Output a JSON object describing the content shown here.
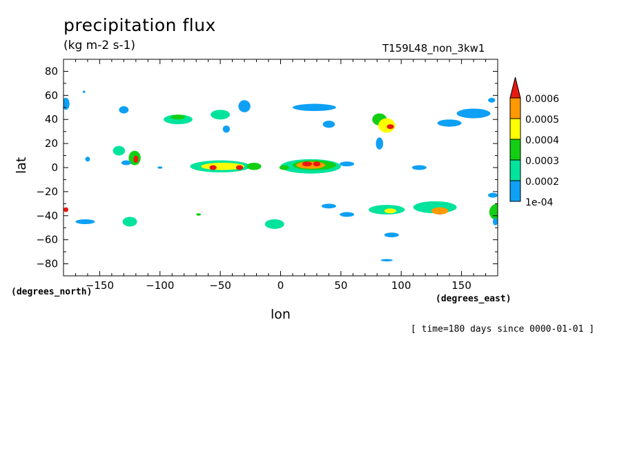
{
  "header": {
    "title": "precipitation flux",
    "units": "(kg m-2 s-1)",
    "run_name": "T159L48_non_3kw1"
  },
  "footer": {
    "time_info": "[ time=180 days since 0000-01-01 ]"
  },
  "chart_data": {
    "type": "heatmap",
    "title": "precipitation flux",
    "subtitle": "(kg m-2 s-1)",
    "xlabel": "lon",
    "ylabel": "lat",
    "x_unit_label": "(degrees_east)",
    "y_unit_label": "(degrees_north)",
    "xlim": [
      -180,
      180
    ],
    "ylim": [
      -90,
      90
    ],
    "x_ticks": [
      -150,
      -100,
      -50,
      0,
      50,
      100,
      150
    ],
    "y_ticks": [
      80,
      60,
      40,
      20,
      0,
      -20,
      -40,
      -60,
      -80
    ],
    "grid": false,
    "legend_position": "right",
    "colorbar": {
      "labels": [
        "0.0006",
        "0.0005",
        "0.0004",
        "0.0003",
        "0.0002",
        "1e-04"
      ],
      "levels": [
        0.0001,
        0.0002,
        0.0003,
        0.0004,
        0.0005,
        0.0006
      ],
      "colors": [
        "#0ea0f5",
        "#00e39c",
        "#13cf13",
        "#ffff00",
        "#ff9900",
        "#e8190f"
      ],
      "extend": "max"
    },
    "features": [
      {
        "lon": -178,
        "lat": 53,
        "rx": 3,
        "ry": 5,
        "level": 1
      },
      {
        "lon": -163,
        "lat": 63,
        "rx": 1,
        "ry": 1,
        "level": 1
      },
      {
        "lon": -130,
        "lat": 48,
        "rx": 4,
        "ry": 3,
        "level": 1
      },
      {
        "lon": -85,
        "lat": 40,
        "rx": 12,
        "ry": 4,
        "level": 2
      },
      {
        "lon": -85,
        "lat": 42,
        "rx": 6,
        "ry": 2,
        "level": 3
      },
      {
        "lon": -50,
        "lat": 44,
        "rx": 8,
        "ry": 4,
        "level": 2
      },
      {
        "lon": -30,
        "lat": 51,
        "rx": 5,
        "ry": 5,
        "level": 1
      },
      {
        "lon": -45,
        "lat": 32,
        "rx": 3,
        "ry": 3,
        "level": 1
      },
      {
        "lon": 28,
        "lat": 50,
        "rx": 18,
        "ry": 3,
        "level": 1
      },
      {
        "lon": 40,
        "lat": 36,
        "rx": 5,
        "ry": 3,
        "level": 1
      },
      {
        "lon": 82,
        "lat": 40,
        "rx": 6,
        "ry": 5,
        "level": 3
      },
      {
        "lon": 88,
        "lat": 35,
        "rx": 7,
        "ry": 6,
        "level": 4
      },
      {
        "lon": 91,
        "lat": 34,
        "rx": 3,
        "ry": 2,
        "level": 6
      },
      {
        "lon": 82,
        "lat": 20,
        "rx": 3,
        "ry": 5,
        "level": 1
      },
      {
        "lon": 140,
        "lat": 37,
        "rx": 10,
        "ry": 3,
        "level": 1
      },
      {
        "lon": 160,
        "lat": 45,
        "rx": 14,
        "ry": 4,
        "level": 1
      },
      {
        "lon": 175,
        "lat": 56,
        "rx": 3,
        "ry": 2,
        "level": 1
      },
      {
        "lon": -134,
        "lat": 14,
        "rx": 5,
        "ry": 4,
        "level": 2
      },
      {
        "lon": -121,
        "lat": 8,
        "rx": 5,
        "ry": 6,
        "level": 3
      },
      {
        "lon": -120,
        "lat": 7,
        "rx": 2,
        "ry": 3,
        "level": 6
      },
      {
        "lon": -128,
        "lat": 4,
        "rx": 4,
        "ry": 2,
        "level": 1
      },
      {
        "lon": -160,
        "lat": 7,
        "rx": 2,
        "ry": 2,
        "level": 1
      },
      {
        "lon": -100,
        "lat": 0,
        "rx": 2,
        "ry": 1,
        "level": 1
      },
      {
        "lon": -50,
        "lat": 1,
        "rx": 25,
        "ry": 5,
        "level": 2
      },
      {
        "lon": -48,
        "lat": 1,
        "rx": 18,
        "ry": 3,
        "level": 4
      },
      {
        "lon": -56,
        "lat": 0,
        "rx": 3,
        "ry": 2,
        "level": 6
      },
      {
        "lon": -34,
        "lat": 0,
        "rx": 3,
        "ry": 2,
        "level": 6
      },
      {
        "lon": -22,
        "lat": 1,
        "rx": 6,
        "ry": 3,
        "level": 3
      },
      {
        "lon": 25,
        "lat": 1,
        "rx": 25,
        "ry": 6,
        "level": 2
      },
      {
        "lon": 28,
        "lat": 2,
        "rx": 18,
        "ry": 4,
        "level": 3
      },
      {
        "lon": 25,
        "lat": 2,
        "rx": 12,
        "ry": 3,
        "level": 5
      },
      {
        "lon": 22,
        "lat": 3,
        "rx": 4,
        "ry": 2,
        "level": 6
      },
      {
        "lon": 30,
        "lat": 3,
        "rx": 3,
        "ry": 2,
        "level": 6
      },
      {
        "lon": 3,
        "lat": 0,
        "rx": 4,
        "ry": 2,
        "level": 3
      },
      {
        "lon": 55,
        "lat": 3,
        "rx": 6,
        "ry": 2,
        "level": 1
      },
      {
        "lon": 115,
        "lat": 0,
        "rx": 6,
        "ry": 2,
        "level": 1
      },
      {
        "lon": 180,
        "lat": -37,
        "rx": 7,
        "ry": 7,
        "level": 3
      },
      {
        "lon": -178,
        "lat": -35,
        "rx": 2,
        "ry": 2,
        "level": 6
      },
      {
        "lon": -162,
        "lat": -45,
        "rx": 8,
        "ry": 2,
        "level": 1
      },
      {
        "lon": -125,
        "lat": -45,
        "rx": 6,
        "ry": 4,
        "level": 2
      },
      {
        "lon": -68,
        "lat": -39,
        "rx": 2,
        "ry": 1,
        "level": 3
      },
      {
        "lon": -5,
        "lat": -47,
        "rx": 8,
        "ry": 4,
        "level": 2
      },
      {
        "lon": 40,
        "lat": -32,
        "rx": 6,
        "ry": 2,
        "level": 1
      },
      {
        "lon": 55,
        "lat": -39,
        "rx": 6,
        "ry": 2,
        "level": 1
      },
      {
        "lon": 92,
        "lat": -56,
        "rx": 6,
        "ry": 2,
        "level": 1
      },
      {
        "lon": 88,
        "lat": -35,
        "rx": 15,
        "ry": 4,
        "level": 2
      },
      {
        "lon": 91,
        "lat": -36,
        "rx": 5,
        "ry": 2,
        "level": 4
      },
      {
        "lon": 128,
        "lat": -33,
        "rx": 18,
        "ry": 5,
        "level": 2
      },
      {
        "lon": 132,
        "lat": -36,
        "rx": 7,
        "ry": 3,
        "level": 5
      },
      {
        "lon": 176,
        "lat": -23,
        "rx": 4,
        "ry": 2,
        "level": 1
      },
      {
        "lon": 178,
        "lat": -45,
        "rx": 2,
        "ry": 3,
        "level": 1
      },
      {
        "lon": 88,
        "lat": -77,
        "rx": 5,
        "ry": 1,
        "level": 1
      }
    ]
  }
}
